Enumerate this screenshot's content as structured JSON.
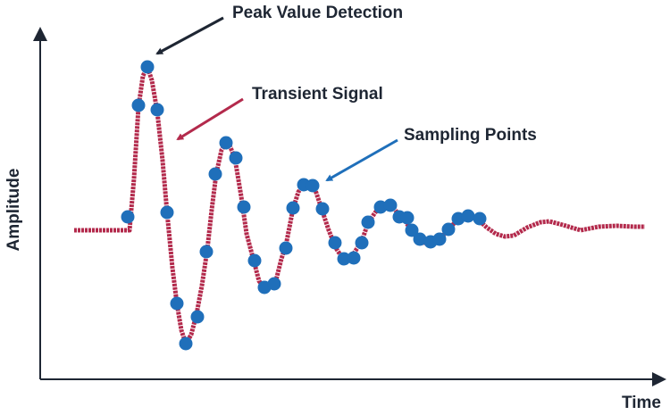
{
  "chart_data": {
    "type": "line",
    "xlabel": "Time",
    "ylabel": "Amplitude",
    "xlim": [
      0,
      700
    ],
    "ylim": [
      0,
      390
    ],
    "annotations": [
      "Peak Value Detection",
      "Transient Signal",
      "Sampling Points"
    ],
    "series": [
      {
        "type": "line",
        "color": "#b32a4c",
        "x": [
          38,
          100,
          105,
          110,
          115,
          120,
          125,
          131,
          137,
          142,
          148,
          153,
          158,
          163,
          169,
          175,
          181,
          187,
          192,
          197,
          203,
          208,
          213,
          218,
          225,
          231,
          239,
          245,
          251,
          257,
          263,
          270,
          275,
          283,
          289,
          295,
          300,
          307,
          315,
          323,
          331,
          339,
          345,
          351,
          360,
          367,
          375,
          382,
          387,
          395,
          401,
          407,
          415,
          423,
          430,
          437,
          445,
          453,
          460,
          467,
          475,
          482,
          490,
          500,
          510,
          520,
          530,
          545,
          560,
          570,
          585,
          605,
          625,
          645,
          665,
          677
        ],
        "values": [
          167,
          167,
          225,
          305,
          340,
          350,
          335,
          300,
          245,
          187,
          125,
          85,
          55,
          40,
          50,
          73,
          105,
          145,
          190,
          230,
          257,
          265,
          260,
          247,
          205,
          163,
          133,
          110,
          103,
          105,
          107,
          135,
          150,
          191,
          210,
          218,
          218,
          215,
          191,
          167,
          147,
          135,
          135,
          141,
          155,
          175,
          187,
          193,
          195,
          193,
          185,
          180,
          167,
          157,
          153,
          153,
          157,
          163,
          171,
          179,
          183,
          183,
          179,
          170,
          163,
          160,
          161,
          170,
          176,
          177,
          173,
          167,
          171,
          172,
          171,
          171
        ]
      },
      {
        "type": "scatter",
        "color": "#1f6fba",
        "x": [
          98,
          110,
          120,
          131,
          142,
          153,
          163,
          176,
          186,
          196,
          208,
          219,
          228,
          240,
          251,
          262,
          275,
          283,
          295,
          305,
          316,
          330,
          340,
          351,
          360,
          367,
          381,
          392,
          402,
          411,
          416,
          425,
          437,
          447,
          457,
          468,
          479,
          492
        ],
        "values": [
          182,
          307,
          350,
          302,
          187,
          85,
          40,
          70,
          143,
          230,
          265,
          248,
          193,
          133,
          103,
          107,
          147,
          192,
          218,
          217,
          191,
          153,
          135,
          136,
          153,
          176,
          193,
          195,
          182,
          181,
          167,
          157,
          154,
          157,
          168,
          180,
          183,
          180
        ]
      }
    ]
  }
}
